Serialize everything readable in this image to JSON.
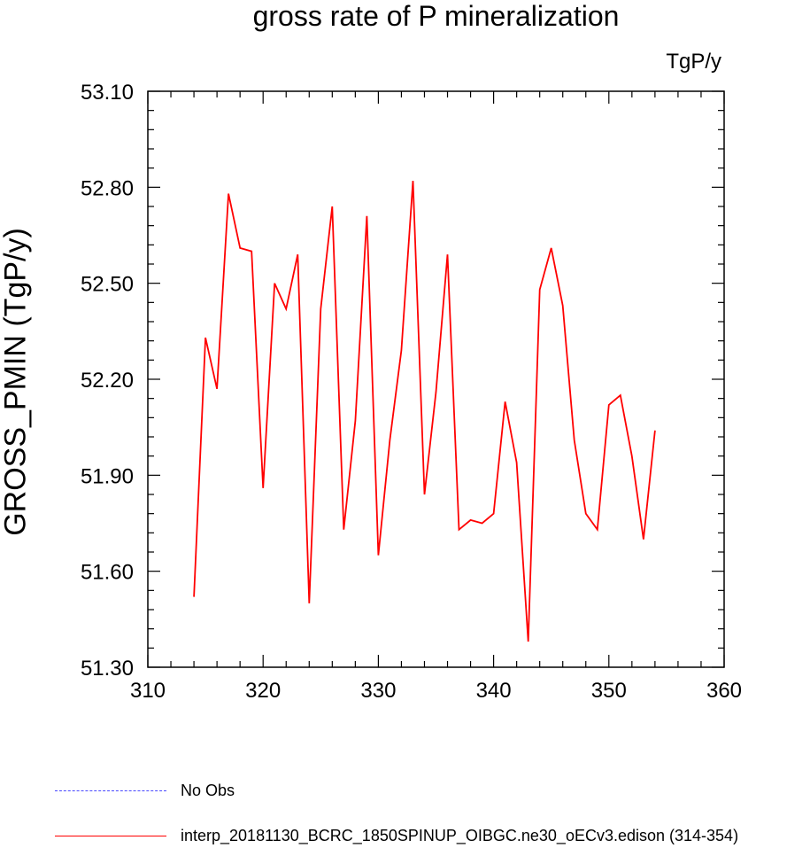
{
  "chart_data": {
    "type": "line",
    "title": "gross rate of P mineralization",
    "units": "TgP/y",
    "xlabel": "",
    "ylabel": "GROSS_PMIN  (TgP/y)",
    "xlim": [
      310,
      360
    ],
    "ylim": [
      51.3,
      53.1
    ],
    "xticks": [
      "310",
      "320",
      "330",
      "340",
      "350",
      "360"
    ],
    "yticks": [
      "51.30",
      "51.60",
      "51.90",
      "52.20",
      "52.50",
      "52.80",
      "53.10"
    ],
    "grid": false,
    "series": [
      {
        "name": "interp_20181130_BCRC_1850SPINUP_OIBGC.ne30_oECv3.edison (314-354)",
        "color": "#ff0000",
        "x": [
          314,
          315,
          316,
          317,
          318,
          319,
          320,
          321,
          322,
          323,
          324,
          325,
          326,
          327,
          328,
          329,
          330,
          331,
          332,
          333,
          334,
          335,
          336,
          337,
          338,
          339,
          340,
          341,
          342,
          343,
          344,
          345,
          346,
          347,
          348,
          349,
          350,
          351,
          352,
          353,
          354
        ],
        "y": [
          51.52,
          52.33,
          52.17,
          52.78,
          52.61,
          52.6,
          51.86,
          52.5,
          52.42,
          52.59,
          51.5,
          52.42,
          52.74,
          51.73,
          52.07,
          52.71,
          51.65,
          52.01,
          52.29,
          52.82,
          51.84,
          52.16,
          52.59,
          51.73,
          51.76,
          51.75,
          51.78,
          52.13,
          51.94,
          51.38,
          52.48,
          52.61,
          52.43,
          52.01,
          51.78,
          51.73,
          52.12,
          52.15,
          51.96,
          51.7,
          52.04
        ]
      }
    ],
    "legend": [
      {
        "label": "No Obs",
        "style": "dashed",
        "color": "#4747ff"
      },
      {
        "label": "interp_20181130_BCRC_1850SPINUP_OIBGC.ne30_oECv3.edison (314-354)",
        "style": "solid",
        "color": "#ff0000"
      }
    ]
  }
}
